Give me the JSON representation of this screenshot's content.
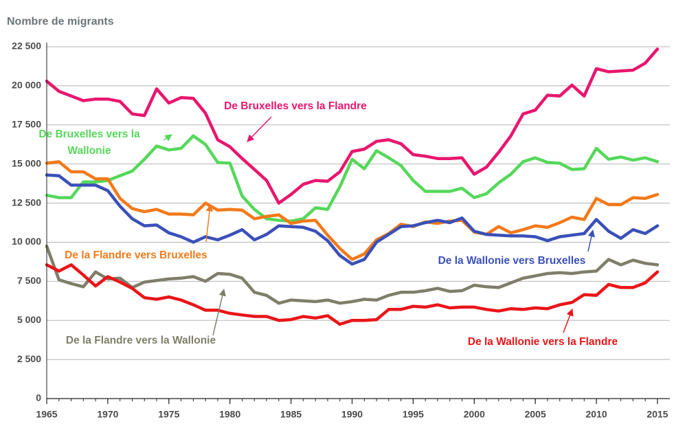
{
  "chart_data": {
    "type": "line",
    "y_axis_label": "Nombre de migrants",
    "x": [
      1965,
      1966,
      1967,
      1968,
      1969,
      1970,
      1971,
      1972,
      1973,
      1974,
      1975,
      1976,
      1977,
      1978,
      1979,
      1980,
      1981,
      1982,
      1983,
      1984,
      1985,
      1986,
      1987,
      1988,
      1989,
      1990,
      1991,
      1992,
      1993,
      1994,
      1995,
      1996,
      1997,
      1998,
      1999,
      2000,
      2001,
      2002,
      2003,
      2004,
      2005,
      2006,
      2007,
      2008,
      2009,
      2010,
      2011,
      2012,
      2013,
      2014,
      2015
    ],
    "xlim": [
      1965,
      2015
    ],
    "xticks": [
      1965,
      1970,
      1975,
      1980,
      1985,
      1990,
      1995,
      2000,
      2005,
      2010,
      2015
    ],
    "ylim": [
      0,
      22500
    ],
    "yticks": [
      0,
      {
        "value": 2500,
        "label": "2 500"
      },
      {
        "value": 5000,
        "label": "5 000"
      },
      {
        "value": 7500,
        "label": "7 500"
      },
      {
        "value": 10000,
        "label": "10 000"
      },
      {
        "value": 12500,
        "label": "12 500"
      },
      {
        "value": 15000,
        "label": "15 000"
      },
      {
        "value": 17500,
        "label": "17 500"
      },
      {
        "value": 20000,
        "label": "20 000"
      },
      {
        "value": 22500,
        "label": "22 500"
      }
    ],
    "grid": true,
    "series": [
      {
        "name": "De Bruxelles vers la Flandre",
        "color": "#e8166e",
        "values": [
          20300,
          19650,
          19350,
          19050,
          19150,
          19150,
          19000,
          18200,
          18100,
          19800,
          18900,
          19250,
          19200,
          18250,
          16550,
          16100,
          15350,
          14650,
          13950,
          12500,
          13050,
          13700,
          13950,
          13900,
          14500,
          15800,
          15950,
          16450,
          16550,
          16300,
          15600,
          15500,
          15350,
          15350,
          15400,
          14350,
          14800,
          15750,
          16800,
          18200,
          18450,
          19400,
          19350,
          20050,
          19350,
          21100,
          20900,
          20950,
          21000,
          21450,
          22350
        ]
      },
      {
        "name": "De Bruxelles vers la Wallonie",
        "color": "#55d85a",
        "values": [
          13000,
          12850,
          12850,
          13850,
          13850,
          13950,
          14250,
          14550,
          15300,
          16150,
          15900,
          16000,
          16800,
          16250,
          15100,
          15050,
          12950,
          12100,
          11500,
          11400,
          11350,
          11500,
          12200,
          12100,
          13550,
          15300,
          14700,
          15850,
          15400,
          14900,
          13950,
          13250,
          13250,
          13250,
          13450,
          12850,
          13100,
          13800,
          14350,
          15150,
          15400,
          15100,
          15050,
          14650,
          14700,
          16000,
          15300,
          15450,
          15250,
          15400,
          15150
        ]
      },
      {
        "name": "De la Flandre vers Bruxelles",
        "color": "#f27a1a",
        "values": [
          15050,
          15150,
          14500,
          14500,
          14050,
          14050,
          12800,
          12150,
          11950,
          12100,
          11800,
          11800,
          11750,
          12500,
          12050,
          12100,
          12050,
          11500,
          11650,
          11750,
          11200,
          11350,
          11400,
          10450,
          9600,
          8900,
          9250,
          10150,
          10550,
          11150,
          11000,
          11300,
          11200,
          11350,
          11400,
          10650,
          10500,
          11000,
          10600,
          10800,
          11050,
          10950,
          11250,
          11600,
          11450,
          12800,
          12400,
          12400,
          12850,
          12800,
          13050
        ]
      },
      {
        "name": "De la Wallonie vers Bruxelles",
        "color": "#3a50b8",
        "values": [
          14300,
          14250,
          13650,
          13650,
          13650,
          13300,
          12300,
          11500,
          11050,
          11100,
          10600,
          10350,
          10000,
          10350,
          10150,
          10450,
          10800,
          10150,
          10500,
          11050,
          11000,
          10950,
          10700,
          10100,
          9150,
          8600,
          8900,
          10000,
          10500,
          11000,
          11050,
          11250,
          11400,
          11250,
          11550,
          10700,
          10500,
          10450,
          10400,
          10400,
          10350,
          10100,
          10350,
          10450,
          10550,
          11450,
          10700,
          10250,
          10800,
          10550,
          11050
        ]
      },
      {
        "name": "De la Flandre vers la Wallonie",
        "color": "#7e7e6a",
        "values": [
          9750,
          7600,
          7350,
          7150,
          8100,
          7650,
          7700,
          7100,
          7450,
          7550,
          7650,
          7700,
          7800,
          7500,
          8000,
          7950,
          7700,
          6800,
          6600,
          6100,
          6300,
          6250,
          6200,
          6300,
          6100,
          6200,
          6350,
          6300,
          6600,
          6800,
          6800,
          6900,
          7050,
          6850,
          6900,
          7250,
          7150,
          7100,
          7400,
          7700,
          7850,
          8000,
          8050,
          8000,
          8100,
          8150,
          8900,
          8550,
          8850,
          8650,
          8550
        ]
      },
      {
        "name": "De la Wallonie vers la Flandre",
        "color": "#ea1518",
        "values": [
          8550,
          8150,
          8550,
          7900,
          7200,
          7800,
          7450,
          7050,
          6450,
          6350,
          6500,
          6300,
          6000,
          5650,
          5650,
          5450,
          5350,
          5250,
          5250,
          5000,
          5050,
          5250,
          5150,
          5300,
          4750,
          5000,
          5000,
          5050,
          5700,
          5700,
          5900,
          5850,
          6000,
          5800,
          5850,
          5850,
          5700,
          5600,
          5750,
          5700,
          5800,
          5750,
          6000,
          6150,
          6650,
          6600,
          7300,
          7100,
          7100,
          7400,
          8100
        ]
      }
    ]
  }
}
